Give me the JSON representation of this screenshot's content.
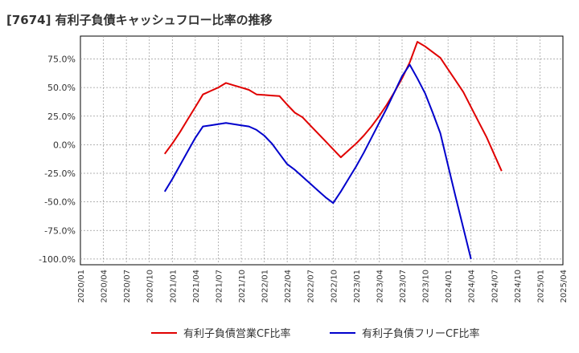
{
  "chart_data": {
    "type": "line",
    "title": "[7674]  有利子負債キャッシュフロー比率の推移",
    "xlabel": "",
    "ylabel": "",
    "ylim": [
      -105,
      95
    ],
    "y_ticks": [
      75,
      50,
      25,
      0,
      -25,
      -50,
      -75,
      -100
    ],
    "y_tick_labels": [
      "75.0%",
      "50.0%",
      "25.0%",
      "0.0%",
      "-25.0%",
      "-50.0%",
      "-75.0%",
      "-100.0%"
    ],
    "x_ticks": [
      "2020/01",
      "2020/04",
      "2020/07",
      "2020/10",
      "2021/01",
      "2021/04",
      "2021/07",
      "2021/10",
      "2022/01",
      "2022/04",
      "2022/07",
      "2022/10",
      "2023/01",
      "2023/04",
      "2023/07",
      "2023/10",
      "2024/01",
      "2024/04",
      "2024/07",
      "2024/10",
      "2025/01",
      "2025/04"
    ],
    "grid": true,
    "legend_position": "bottom",
    "series": [
      {
        "name": "有利子負債営業CF比率",
        "color": "#e00000",
        "x": [
          11,
          12,
          13,
          14,
          15,
          16,
          17,
          18,
          19,
          20,
          21,
          22,
          23,
          24,
          25,
          26,
          27,
          28,
          29,
          30,
          31,
          32,
          33,
          34,
          35,
          36,
          37,
          38,
          39,
          40,
          41,
          42,
          43,
          44,
          45,
          46,
          47,
          48,
          49,
          50,
          51,
          52,
          53,
          54,
          55,
          56,
          57,
          58,
          59
        ],
        "values": [
          -8,
          1,
          11,
          22,
          33,
          44,
          47,
          50,
          54,
          52,
          50,
          48,
          44,
          43.5,
          43,
          42.5,
          35,
          28,
          24,
          17,
          10,
          3,
          -4,
          -11,
          -5,
          1,
          8,
          16,
          25,
          35,
          46,
          58,
          72,
          90,
          86,
          81,
          76,
          66,
          56,
          46,
          33,
          20,
          7,
          -8,
          -23,
          null,
          null,
          null,
          null
        ]
      },
      {
        "name": "有利子負債フリーCF比率",
        "color": "#0000cc",
        "x": [
          11,
          12,
          13,
          14,
          15,
          16,
          17,
          18,
          19,
          20,
          21,
          22,
          23,
          24,
          25,
          26,
          27,
          28,
          29,
          30,
          31,
          32,
          33,
          34,
          35,
          36,
          37,
          38,
          39,
          40,
          41,
          42,
          43,
          44,
          45,
          46,
          47,
          48,
          49,
          50,
          51,
          52,
          53,
          54,
          55,
          56,
          57,
          58,
          59
        ],
        "values": [
          -41,
          -30,
          -18,
          -6,
          6,
          16,
          17,
          18,
          19,
          18,
          17,
          16,
          13,
          8,
          1,
          -8,
          -17,
          -22,
          -28,
          -34,
          -40,
          -46,
          -51,
          -41,
          -30,
          -19,
          -7,
          6,
          19,
          32,
          46,
          60,
          70,
          58,
          45,
          28,
          10,
          -18,
          -46,
          -73,
          -100,
          null,
          null,
          null,
          null,
          null,
          null,
          null,
          null
        ]
      }
    ]
  }
}
